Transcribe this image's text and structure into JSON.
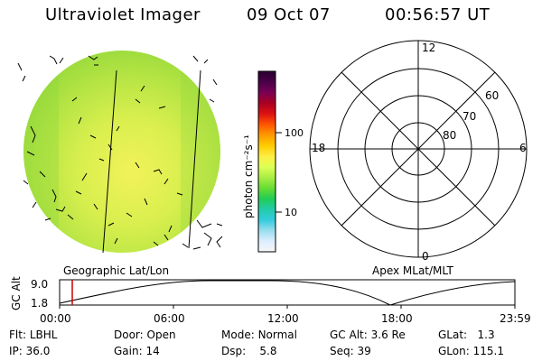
{
  "header": {
    "instrument": "Ultraviolet Imager",
    "date": "09 Oct 07",
    "time": "00:56:57 UT"
  },
  "colorbar": {
    "unit_label": "photon cm⁻²s⁻¹",
    "ticks": [
      "100",
      "10"
    ],
    "stops": [
      "#2a0030",
      "#4a0048",
      "#7a0055",
      "#aa0022",
      "#dd1111",
      "#ff5500",
      "#ff9900",
      "#ffcc00",
      "#ffee44",
      "#ddff55",
      "#aaee44",
      "#66dd33",
      "#22cc55",
      "#22ccaa",
      "#33ccdd",
      "#99ddee",
      "#ddeeff",
      "#f6f6f6"
    ]
  },
  "geo_panel": {
    "label": "Geographic Lat/Lon"
  },
  "polar_plot": {
    "label": "Apex MLat/MLT",
    "mlt_labels": {
      "top": "12",
      "left": "18",
      "right": "6",
      "bottom": "0"
    },
    "lat_labels": [
      "60",
      "70",
      "80"
    ]
  },
  "altitude_plot": {
    "ylabel": "GC Alt",
    "ymax_label": "9.0",
    "ymin_label": "1.8",
    "x_ticks": [
      "00:00",
      "06:00",
      "12:00",
      "18:00",
      "23:59"
    ],
    "current_time_marker_color": "#cc0000"
  },
  "status": {
    "flt": {
      "label": "Flt:",
      "value": "LBHL"
    },
    "door": {
      "label": "Door:",
      "value": "Open"
    },
    "mode": {
      "label": "Mode:",
      "value": "Normal"
    },
    "gcalt": {
      "label": "GC Alt:",
      "value": "3.6 Re"
    },
    "glat": {
      "label": "GLat:",
      "value": "1.3"
    },
    "ip": {
      "label": "IP:",
      "value": "36.0"
    },
    "gain": {
      "label": "Gain:",
      "value": "14"
    },
    "dsp": {
      "label": "Dsp:",
      "value": "5.8"
    },
    "seq": {
      "label": "Seq:",
      "value": "39"
    },
    "glon": {
      "label": "GLon:",
      "value": "115.1"
    }
  }
}
